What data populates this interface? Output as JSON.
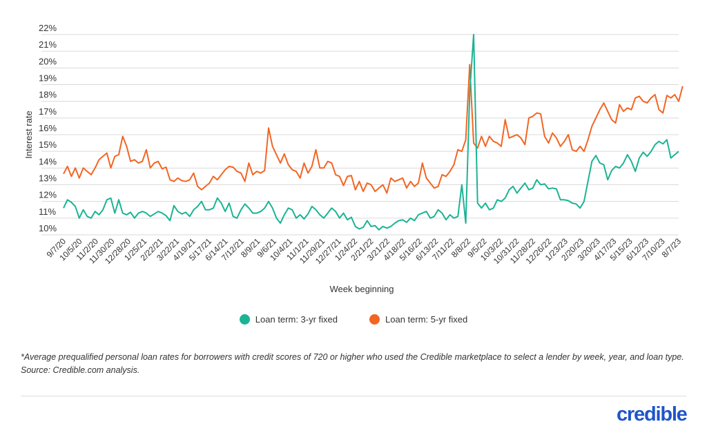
{
  "colors": {
    "series_3yr": "#1ab394",
    "series_5yr": "#f26522",
    "brand": "#1f55c8",
    "grid": "#d9d9d9"
  },
  "legend": {
    "item1": "Loan term: 3-yr fixed",
    "item2": "Loan term: 5-yr fixed"
  },
  "footnote": "*Average prequalified personal loan rates for borrowers with credit scores of 720 or higher who used the Credible marketplace to select a lender by week, year, and loan type. Source: Credible.com analysis.",
  "logo": "credible",
  "chart_data": {
    "type": "line",
    "xlabel": "Week beginning",
    "ylabel": "Interest rate",
    "ylim": [
      10,
      22
    ],
    "y_ticks": [
      "10%",
      "11%",
      "12%",
      "13%",
      "14%",
      "15%",
      "16%",
      "17%",
      "18%",
      "19%",
      "20%",
      "21%",
      "22%"
    ],
    "x_ticks": [
      "9/7/20",
      "10/5/20",
      "11/2/20",
      "11/30/20",
      "12/28/20",
      "1/25/21",
      "2/22/21",
      "3/22/21",
      "4/19/21",
      "5/17/21",
      "6/14/21",
      "7/12/21",
      "8/9/21",
      "9/6/21",
      "10/4/21",
      "11/1/21",
      "11/29/21",
      "12/27/21",
      "1/24/22",
      "2/21/22",
      "3/21/22",
      "4/18/22",
      "5/16/22",
      "6/13/22",
      "7/11/22",
      "8/8/22",
      "9/5/22",
      "10/3/22",
      "10/31/22",
      "11/28/22",
      "12/26/22",
      "1/23/23",
      "2/20/23",
      "3/20/23",
      "4/17/23",
      "5/15/23",
      "6/12/23",
      "7/10/23",
      "8/7/23"
    ],
    "grid": "horizontal",
    "legend_position": "bottom-center",
    "series": [
      {
        "name": "Loan term: 3-yr fixed",
        "values": [
          11.6,
          12.1,
          11.95,
          11.7,
          11.0,
          11.5,
          11.1,
          11.0,
          11.4,
          11.2,
          11.5,
          12.1,
          12.2,
          11.3,
          12.1,
          11.3,
          11.2,
          11.35,
          11.0,
          11.3,
          11.4,
          11.3,
          11.1,
          11.25,
          11.4,
          11.3,
          11.15,
          10.85,
          11.75,
          11.4,
          11.25,
          11.35,
          11.1,
          11.5,
          11.7,
          12.0,
          11.5,
          11.5,
          11.6,
          12.2,
          11.9,
          11.4,
          11.9,
          11.1,
          11.0,
          11.5,
          11.85,
          11.6,
          11.3,
          11.3,
          11.4,
          11.6,
          12.0,
          11.6,
          11.0,
          10.7,
          11.2,
          11.6,
          11.5,
          11.0,
          11.2,
          10.95,
          11.25,
          11.7,
          11.5,
          11.2,
          11.0,
          11.3,
          11.6,
          11.4,
          11.0,
          11.3,
          10.9,
          11.05,
          10.5,
          10.35,
          10.45,
          10.85,
          10.5,
          10.55,
          10.3,
          10.5,
          10.4,
          10.5,
          10.7,
          10.85,
          10.9,
          10.75,
          11.0,
          10.85,
          11.2,
          11.3,
          11.4,
          11.0,
          11.1,
          11.5,
          11.3,
          10.9,
          11.2,
          11.0,
          11.1,
          13.0,
          10.7,
          18.5,
          22.0,
          11.9,
          11.6,
          11.9,
          11.5,
          11.6,
          12.1,
          12.0,
          12.2,
          12.7,
          12.9,
          12.5,
          12.8,
          13.1,
          12.7,
          12.8,
          13.3,
          13.0,
          13.05,
          12.75,
          12.8,
          12.75,
          12.1,
          12.1,
          12.05,
          11.9,
          11.85,
          11.6,
          12.0,
          13.2,
          14.4,
          14.75,
          14.3,
          14.2,
          13.3,
          13.85,
          14.1,
          14.0,
          14.3,
          14.8,
          14.4,
          13.8,
          14.6,
          14.95,
          14.7,
          15.0,
          15.4,
          15.6,
          15.45,
          15.7,
          14.6,
          14.8,
          15.0
        ]
      },
      {
        "name": "Loan term: 5-yr fixed",
        "values": [
          13.65,
          14.1,
          13.5,
          14.0,
          13.4,
          14.0,
          13.8,
          13.6,
          14.0,
          14.5,
          14.7,
          14.9,
          14.0,
          14.7,
          14.8,
          15.9,
          15.3,
          14.4,
          14.5,
          14.3,
          14.4,
          15.1,
          14.0,
          14.3,
          14.4,
          13.95,
          14.05,
          13.3,
          13.2,
          13.4,
          13.25,
          13.2,
          13.3,
          13.7,
          12.9,
          12.7,
          12.9,
          13.1,
          13.5,
          13.3,
          13.6,
          13.9,
          14.1,
          14.05,
          13.8,
          13.7,
          13.2,
          14.3,
          13.6,
          13.8,
          13.7,
          13.85,
          16.4,
          15.3,
          14.8,
          14.3,
          14.85,
          14.2,
          13.9,
          13.8,
          13.4,
          14.3,
          13.7,
          14.1,
          15.1,
          14.0,
          14.0,
          14.4,
          14.3,
          13.6,
          13.5,
          12.95,
          13.5,
          13.55,
          12.7,
          13.2,
          12.6,
          13.1,
          13.0,
          12.6,
          12.8,
          13.0,
          12.5,
          13.4,
          13.2,
          13.3,
          13.4,
          12.8,
          13.2,
          12.9,
          13.1,
          14.3,
          13.4,
          13.1,
          12.8,
          12.9,
          13.6,
          13.5,
          13.8,
          14.2,
          15.1,
          15.0,
          15.7,
          20.2,
          15.5,
          15.2,
          15.9,
          15.3,
          15.9,
          15.6,
          15.5,
          15.3,
          16.9,
          15.8,
          15.9,
          16.0,
          15.8,
          15.4,
          17.0,
          17.1,
          17.3,
          17.25,
          15.9,
          15.5,
          16.1,
          15.8,
          15.3,
          15.6,
          16.0,
          15.1,
          15.0,
          15.3,
          15.0,
          15.7,
          16.5,
          17.0,
          17.5,
          17.9,
          17.4,
          16.9,
          16.7,
          17.8,
          17.4,
          17.6,
          17.5,
          18.2,
          18.3,
          18.0,
          17.9,
          18.2,
          18.4,
          17.5,
          17.3,
          18.35,
          18.2,
          18.4,
          18.0,
          18.9
        ]
      }
    ]
  }
}
